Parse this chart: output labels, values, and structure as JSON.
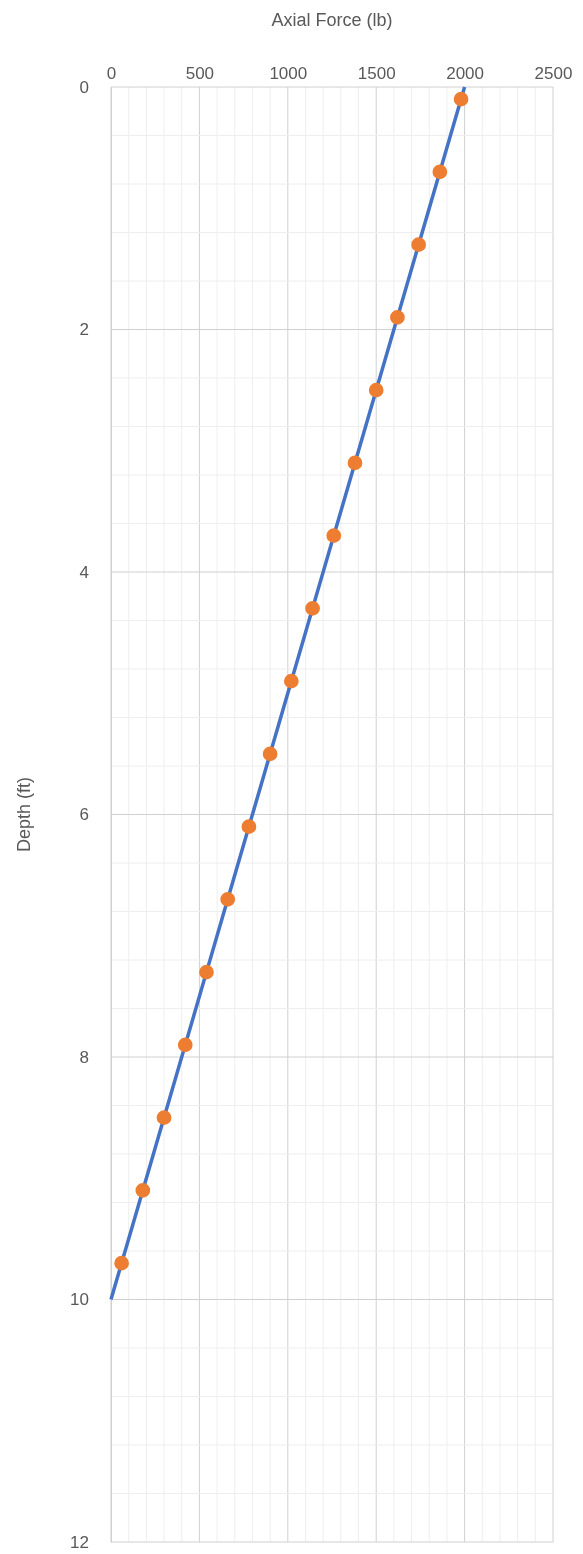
{
  "chart_data": {
    "type": "line",
    "xlabel": "Axial Force (lb)",
    "ylabel": "Depth (ft)",
    "xlim": [
      0,
      2500
    ],
    "xticks": [
      0,
      {
        "value": 100,
        "label": null
      },
      {
        "value": 200,
        "label": null
      },
      {
        "value": 300,
        "label": null
      },
      {
        "value": 400,
        "label": null
      },
      500,
      {
        "value": 600,
        "label": null
      },
      {
        "value": 700,
        "label": null
      },
      {
        "value": 800,
        "label": null
      },
      {
        "value": 900,
        "label": null
      },
      1000,
      {
        "value": 1100,
        "label": null
      },
      {
        "value": 1200,
        "label": null
      },
      {
        "value": 1300,
        "label": null
      },
      {
        "value": 1400,
        "label": null
      },
      1500,
      {
        "value": 1600,
        "label": null
      },
      {
        "value": 1700,
        "label": null
      },
      {
        "value": 1800,
        "label": null
      },
      {
        "value": 1900,
        "label": null
      },
      2000,
      {
        "value": 2100,
        "label": null
      },
      {
        "value": 2200,
        "label": null
      },
      {
        "value": 2300,
        "label": null
      },
      {
        "value": 2400,
        "label": null
      },
      2500
    ],
    "ylim": [
      12,
      0
    ],
    "yticks": [
      0,
      {
        "value": 0.4,
        "label": null
      },
      {
        "value": 0.8,
        "label": null
      },
      {
        "value": 1.2,
        "label": null
      },
      {
        "value": 1.6,
        "label": null
      },
      2,
      {
        "value": 2.4,
        "label": null
      },
      {
        "value": 2.8,
        "label": null
      },
      {
        "value": 3.2,
        "label": null
      },
      {
        "value": 3.6,
        "label": null
      },
      4,
      {
        "value": 4.4,
        "label": null
      },
      {
        "value": 4.8,
        "label": null
      },
      {
        "value": 5.2,
        "label": null
      },
      {
        "value": 5.6,
        "label": null
      },
      6,
      {
        "value": 6.4,
        "label": null
      },
      {
        "value": 6.8,
        "label": null
      },
      {
        "value": 7.2,
        "label": null
      },
      {
        "value": 7.6,
        "label": null
      },
      8,
      {
        "value": 8.4,
        "label": null
      },
      {
        "value": 8.8,
        "label": null
      },
      {
        "value": 9.2,
        "label": null
      },
      {
        "value": 9.6,
        "label": null
      },
      10,
      {
        "value": 10.4,
        "label": null
      },
      {
        "value": 10.8,
        "label": null
      },
      {
        "value": 11.2,
        "label": null
      },
      {
        "value": 11.6,
        "label": null
      },
      12
    ],
    "grid": true,
    "series": [
      {
        "color": "#4472c4",
        "x": [
          2000,
          0
        ],
        "values": [
          0,
          10
        ],
        "marker": "none"
      },
      {
        "type": "scatter",
        "color": "#ed7d31",
        "marker": "circle",
        "x": [
          1980,
          1860,
          1740,
          1620,
          1500,
          1380,
          1260,
          1140,
          1020,
          900,
          780,
          660,
          540,
          420,
          300,
          180,
          60
        ],
        "values": [
          0.1,
          0.7,
          1.3,
          1.9,
          2.5,
          3.1,
          3.7,
          4.3,
          4.9,
          5.5,
          6.1,
          6.7,
          7.3,
          7.9,
          8.5,
          9.1,
          9.7
        ]
      }
    ]
  }
}
